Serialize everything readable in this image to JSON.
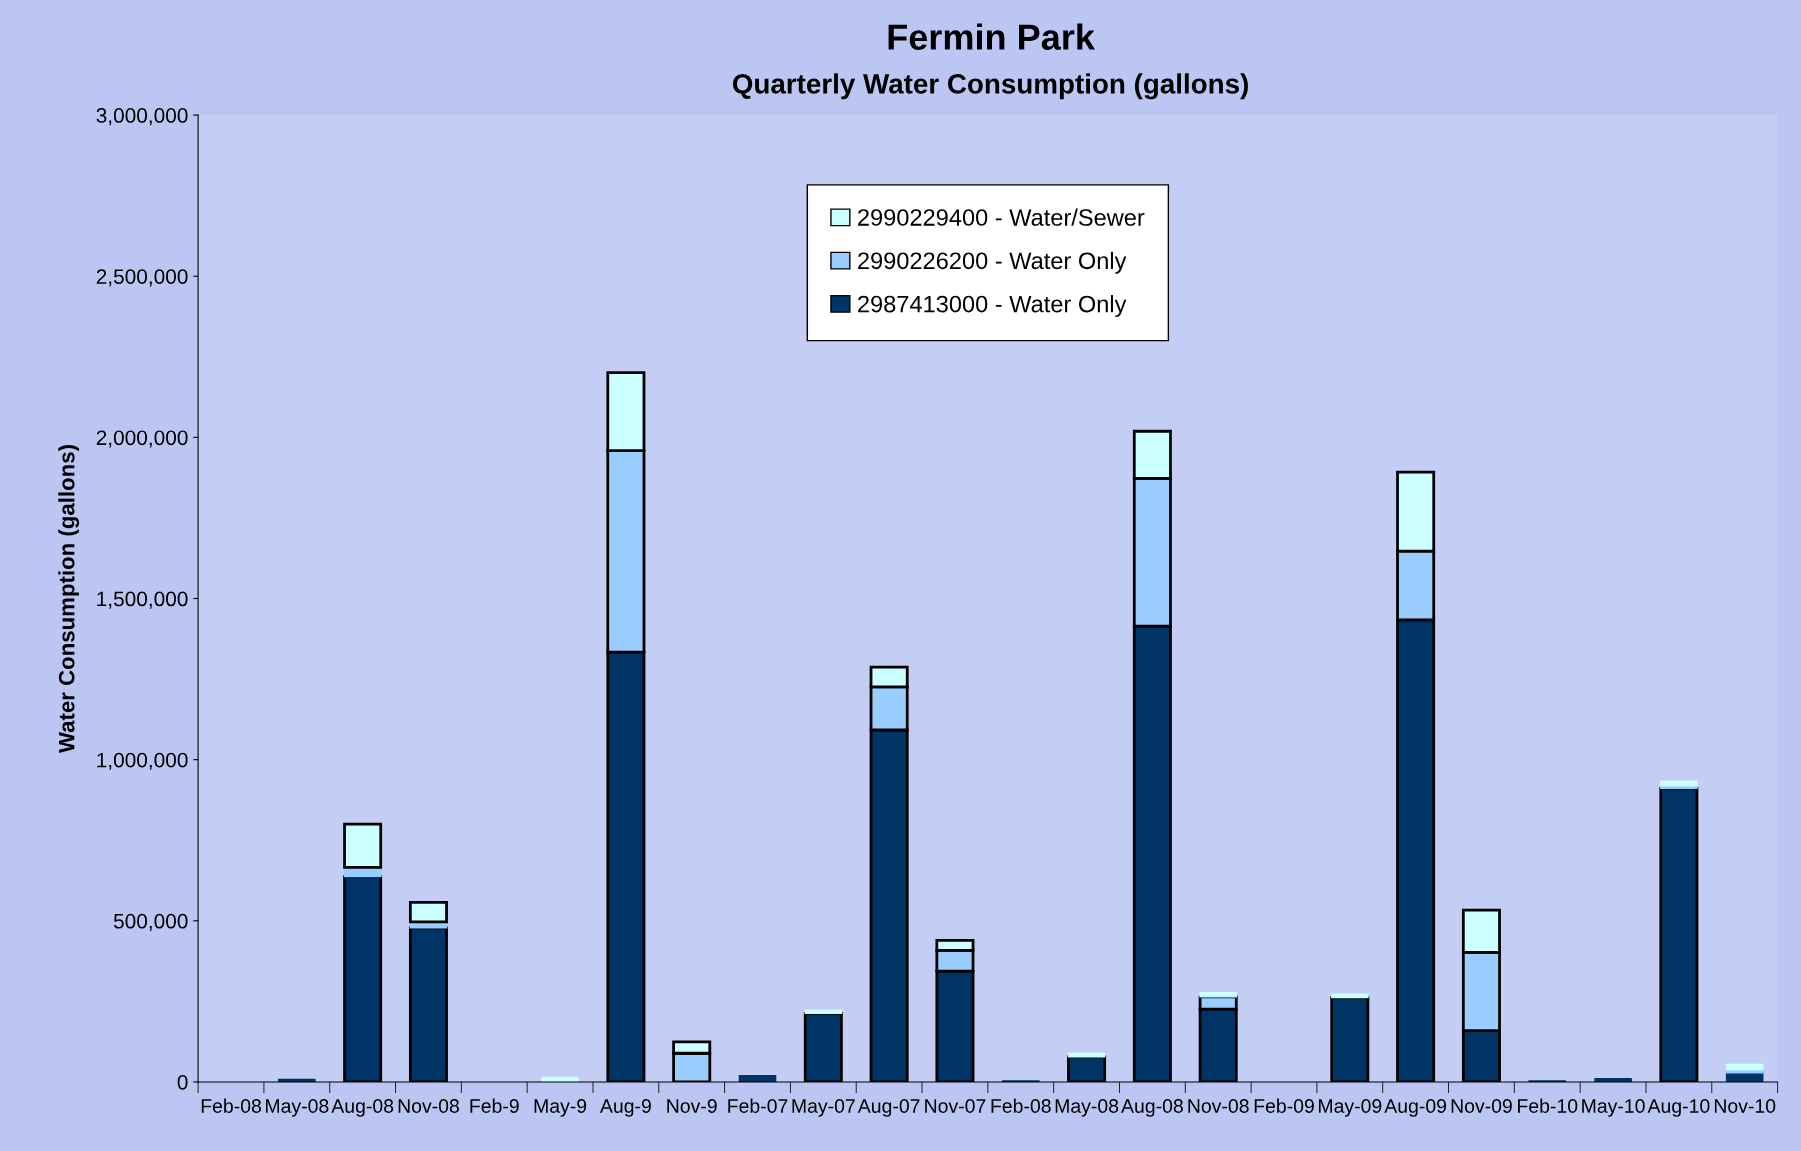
{
  "chart_data": {
    "type": "bar",
    "stacked": true,
    "title": "Fermin Park",
    "subtitle": "Quarterly Water Consumption (gallons)",
    "ylabel": "Water Consumption (gallons)",
    "categories": [
      "Feb-08",
      "May-08",
      "Aug-08",
      "Nov-08",
      "Feb-9",
      "May-9",
      "Aug-9",
      "Nov-9",
      "Feb-07",
      "May-07",
      "Aug-07",
      "Nov-07",
      "Feb-08",
      "May-08",
      "Aug-08",
      "Nov-08",
      "Feb-09",
      "May-09",
      "Aug-09",
      "Nov-09",
      "Feb-10",
      "May-10",
      "Aug-10",
      "Nov-10"
    ],
    "series": [
      {
        "name": "2987413000 - Water Only",
        "color": "#003366",
        "values": [
          0,
          8000,
          637000,
          478000,
          0,
          null,
          1334000,
          0,
          19000,
          213000,
          1092000,
          344000,
          3000,
          78000,
          1414000,
          226000,
          null,
          262000,
          1434000,
          159000,
          3000,
          10000,
          911000,
          28000
        ]
      },
      {
        "name": "2990226200 - Water Only",
        "color": "#99ccff",
        "values": [
          0,
          0,
          29000,
          19000,
          0,
          0,
          625000,
          89000,
          0,
          0,
          134000,
          64000,
          0,
          0,
          459000,
          38000,
          0,
          0,
          213000,
          243000,
          0,
          0,
          8000,
          10000
        ]
      },
      {
        "name": "2990229400 - Water/Sewer",
        "color": "#ccffff",
        "values": [
          0,
          0,
          134000,
          60000,
          0,
          14000,
          242000,
          35000,
          0,
          10000,
          61000,
          31000,
          0,
          11000,
          146000,
          13000,
          0,
          10000,
          245000,
          131000,
          0,
          0,
          14000,
          16000
        ]
      }
    ],
    "ylim": [
      0,
      3000000
    ],
    "yticks": [
      {
        "value": 0,
        "label": "0"
      },
      {
        "value": 500000,
        "label": "500,000"
      },
      {
        "value": 1000000,
        "label": "1,000,000"
      },
      {
        "value": 1500000,
        "label": "1,500,000"
      },
      {
        "value": 2000000,
        "label": "2,000,000"
      },
      {
        "value": 2500000,
        "label": "2,500,000"
      },
      {
        "value": 3000000,
        "label": "3,000,000"
      }
    ],
    "legend": "top",
    "grid": false
  }
}
